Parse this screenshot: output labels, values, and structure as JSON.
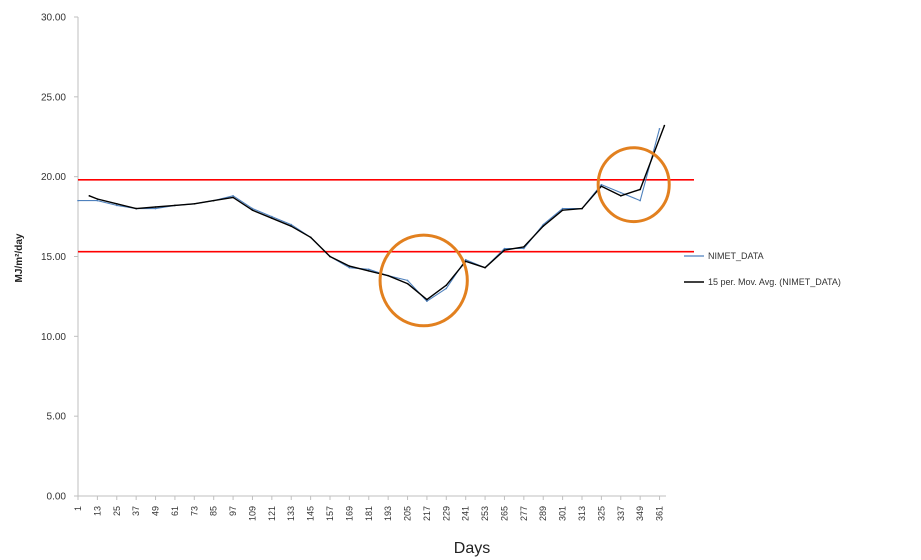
{
  "chart_data": {
    "type": "line",
    "xlabel": "Days",
    "ylabel": "MJ/m²/day",
    "ylim": [
      0,
      30
    ],
    "yticks": [
      "0.00",
      "5.00",
      "10.00",
      "15.00",
      "20.00",
      "25.00",
      "30.00"
    ],
    "xlim": [
      1,
      365
    ],
    "xticks": [
      1,
      13,
      25,
      37,
      49,
      61,
      73,
      85,
      97,
      109,
      121,
      133,
      145,
      157,
      169,
      181,
      193,
      205,
      217,
      229,
      241,
      253,
      265,
      277,
      289,
      301,
      313,
      325,
      337,
      349,
      361
    ],
    "grid": false,
    "legend_position": "right",
    "series": [
      {
        "name": "NIMET_DATA",
        "color": "#4f81bd",
        "x": [
          1,
          13,
          25,
          37,
          49,
          61,
          73,
          85,
          97,
          109,
          121,
          133,
          145,
          157,
          169,
          181,
          193,
          205,
          217,
          229,
          241,
          253,
          265,
          277,
          289,
          301,
          313,
          325,
          337,
          349,
          361
        ],
        "values": [
          18.5,
          18.5,
          18.2,
          18,
          18,
          18.2,
          18.3,
          18.5,
          18.8,
          18,
          17.5,
          17,
          16.2,
          15,
          14.3,
          14.2,
          13.8,
          13.5,
          12.2,
          13,
          14.8,
          14.3,
          15.5,
          15.5,
          17,
          18,
          18,
          19.5,
          19,
          18.5,
          23
        ]
      },
      {
        "name": "15 per. Mov. Avg. (NIMET_DATA)",
        "color": "#000000",
        "x": [
          8,
          13,
          25,
          37,
          49,
          61,
          73,
          85,
          97,
          109,
          121,
          133,
          145,
          157,
          169,
          181,
          193,
          205,
          217,
          229,
          241,
          253,
          265,
          277,
          289,
          301,
          313,
          325,
          337,
          349,
          364
        ],
        "values": [
          18.8,
          18.6,
          18.3,
          18.0,
          18.1,
          18.2,
          18.3,
          18.5,
          18.7,
          17.9,
          17.4,
          16.9,
          16.2,
          15.0,
          14.4,
          14.1,
          13.8,
          13.3,
          12.3,
          13.2,
          14.7,
          14.3,
          15.4,
          15.6,
          16.9,
          17.9,
          18.0,
          19.4,
          18.8,
          19.2,
          23.2
        ]
      }
    ],
    "reference_lines": [
      {
        "y": 19.8,
        "color": "#ff0000"
      },
      {
        "y": 15.3,
        "color": "#ff0000"
      }
    ],
    "annotations": [
      {
        "shape": "circle",
        "color": "#e2801f",
        "center_x": 215,
        "center_y": 13.5,
        "radius_days": 27
      },
      {
        "shape": "circle",
        "color": "#e2801f",
        "center_x": 345,
        "center_y": 19.5,
        "radius_days": 22
      }
    ]
  }
}
